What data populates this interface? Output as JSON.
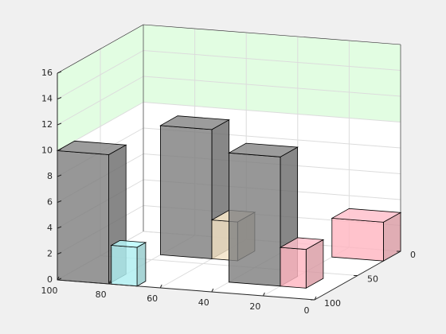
{
  "chart_data": {
    "type": "bar3",
    "bars": [
      {
        "x": [
          80,
          100
        ],
        "y": [
          80,
          100
        ],
        "z": 10,
        "color": "#808080"
      },
      {
        "x": [
          69,
          79
        ],
        "y": [
          90,
          100
        ],
        "z": 3,
        "color": "#aeeef0"
      },
      {
        "x": [
          60,
          80
        ],
        "y": [
          20,
          40
        ],
        "z": 10,
        "color": "#808080"
      },
      {
        "x": [
          50,
          60
        ],
        "y": [
          20,
          40
        ],
        "z": 3,
        "color": "#f3e2c5"
      },
      {
        "x": [
          20,
          40
        ],
        "y": [
          60,
          80
        ],
        "z": 10,
        "color": "#808080"
      },
      {
        "x": [
          10,
          20
        ],
        "y": [
          60,
          80
        ],
        "z": 3,
        "color": "#ffb6c1"
      },
      {
        "x": [
          0,
          20
        ],
        "y": [
          0,
          20
        ],
        "z": 3,
        "color": "#ffb6c1"
      }
    ],
    "xlim": [
      0,
      100
    ],
    "xticks": [
      0,
      20,
      40,
      60,
      80,
      100
    ],
    "ylim": [
      0,
      100
    ],
    "yticks": [
      0,
      50,
      100
    ],
    "zlim": [
      0,
      16
    ],
    "zticks": [
      0,
      2,
      4,
      6,
      8,
      10,
      12,
      14,
      16
    ],
    "wall_band": [
      10,
      16
    ],
    "wall_band_color": "#e2fde2",
    "grid": true
  }
}
